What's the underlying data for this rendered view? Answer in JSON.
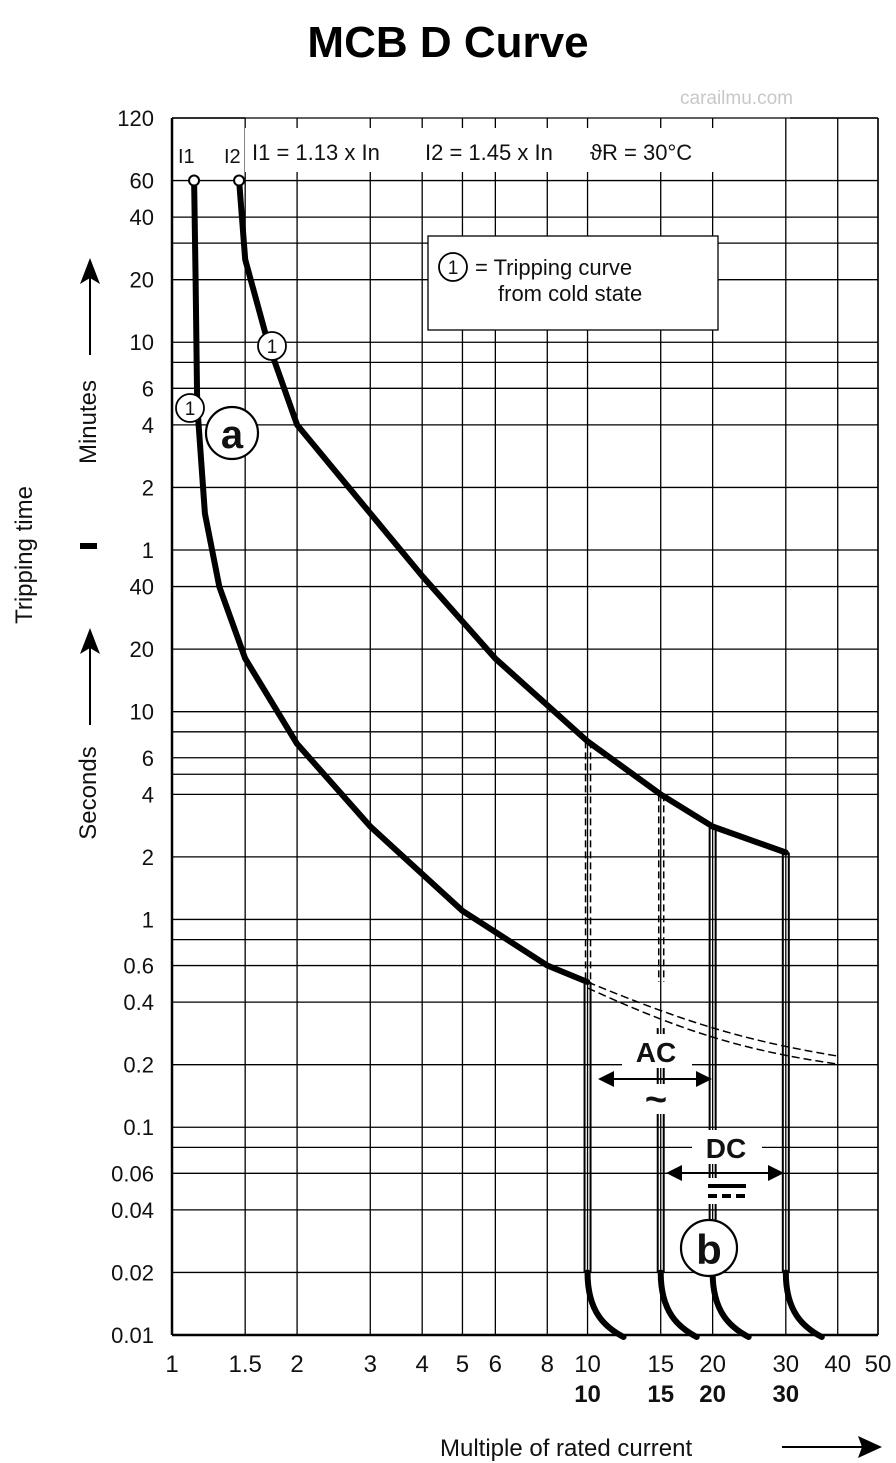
{
  "chart_data": {
    "type": "line",
    "title": "MCB D Curve",
    "watermark": "carailmu.com",
    "xlabel": "Multiple of rated current",
    "xscale": "log",
    "xlim": [
      1,
      50
    ],
    "x_ticks": [
      "1",
      "1.5",
      "2",
      "3",
      "4",
      "5",
      "6",
      "8",
      "10",
      "15",
      "20",
      "30",
      "40",
      "50"
    ],
    "x_ticks_bold": [
      "10",
      "15",
      "20",
      "30"
    ],
    "ylabel": "Tripping time",
    "ylabel_minutes": "Minutes",
    "ylabel_seconds": "Seconds",
    "yscale": "log",
    "y_ticks_minutes": [
      "120",
      "60",
      "40",
      "20",
      "10",
      "6",
      "4",
      "2",
      "1"
    ],
    "y_ticks_seconds": [
      "40",
      "20",
      "10",
      "6",
      "4",
      "2",
      "1",
      "0.6",
      "0.4",
      "0.2",
      "0.1",
      "0.06",
      "0.04",
      "0.02",
      "0.01"
    ],
    "grid": true,
    "annotations": {
      "i1_label": "I1",
      "i2_label": "I2",
      "i1_formula": "I1 = 1.13 x In",
      "i2_formula": "I2 = 1.45 x In",
      "temp": "ϑR = 30°C",
      "legend_marker": "1",
      "legend_text_1": "= Tripping curve",
      "legend_text_2": "from cold state",
      "zone_a": "a",
      "zone_b": "b",
      "ac_label": "AC",
      "ac_symbol": "~",
      "dc_label": "DC"
    },
    "series": [
      {
        "points_x": [
          1.13,
          1.14,
          1.15,
          1.2,
          1.3,
          1.5,
          2,
          3,
          5,
          8,
          10
        ],
        "points_y_seconds": [
          3600,
          1200,
          300,
          90,
          40,
          18,
          7,
          2.8,
          1.1,
          0.6,
          0.5
        ]
      },
      {
        "points_x": [
          1.45,
          1.5,
          1.7,
          2,
          3,
          4,
          6,
          10,
          15,
          20,
          30
        ],
        "points_y_seconds": [
          3600,
          1500,
          600,
          240,
          90,
          45,
          18,
          7.2,
          4,
          2.8,
          2.1
        ]
      }
    ]
  }
}
